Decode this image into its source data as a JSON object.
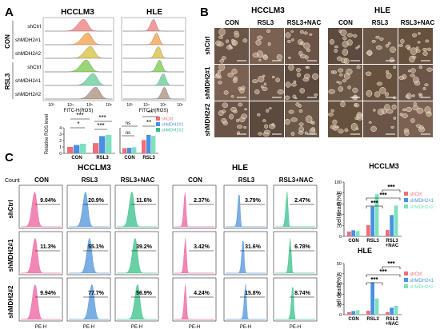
{
  "panels": {
    "a": "A",
    "b": "B",
    "c": "C"
  },
  "colors": {
    "shCtrl": "#f06e78",
    "shMDH2_1": "#4a90e2",
    "shMDH2_2": "#7ee0c0",
    "pink": "#ec5f9c",
    "blue": "#4f93d8",
    "green": "#36c088",
    "flow_red": "#f28a8a",
    "flow_orange": "#f5a95c",
    "flow_yellow": "#dbc84f",
    "flow_green": "#86cf5e",
    "flow_teal": "#76d1a3",
    "flow_brown": "#b49a8a"
  },
  "panelA": {
    "cells": [
      "HCCLM3",
      "HLE"
    ],
    "groups": [
      "CON",
      "RSL3"
    ],
    "row_labels": [
      "shCtrl",
      "shMDH2#1",
      "shMDH2#2",
      "shCtrl",
      "shMDH2#1",
      "shMDH2#2"
    ],
    "xaxis": "FITC-H(ROS)",
    "ticks": [
      "10³",
      "10⁴",
      "10⁵",
      "10⁶"
    ]
  },
  "panelA_bar": {
    "ylabel": "Relative ROS level",
    "yticks": [
      "0",
      "1",
      "2",
      "3",
      "4"
    ],
    "categories": [
      "CON",
      "RSL3"
    ],
    "legend": [
      "shCtrl",
      "shMDH2#1",
      "shMDH2#2"
    ],
    "sig_hcclm3": [
      "*",
      "***",
      "***",
      "***"
    ],
    "sig_hle": [
      "ns",
      "ns",
      "**",
      "**"
    ]
  },
  "panelB": {
    "cells": [
      "HCCLM3",
      "HLE"
    ],
    "conditions": [
      "CON",
      "RSL3",
      "RSL3+NAC"
    ],
    "rows": [
      "shCtrl",
      "shMDH2#1",
      "shMDH2#2"
    ]
  },
  "panelC": {
    "count_label": "Count",
    "cells": [
      "HCCLM3",
      "HLE"
    ],
    "conditions": [
      "CON",
      "RSL3",
      "RSL3+NAC"
    ],
    "rows": [
      "shCtrl",
      "shMDH2#1",
      "shMDH2#2"
    ],
    "xaxis": "PE-H",
    "hcclm3_pct": [
      [
        "9.04%",
        "20.9%",
        "11.6%"
      ],
      [
        "11.3%",
        "55.1%",
        "39.2%"
      ],
      [
        "9.94%",
        "77.7%",
        "56.9%"
      ]
    ],
    "hle_pct": [
      [
        "2.37%",
        "3.79%",
        "2.47%"
      ],
      [
        "3.42%",
        "31.6%",
        "6.78%"
      ],
      [
        "4.24%",
        "15.8%",
        "8.74%"
      ]
    ]
  },
  "chart_data": [
    {
      "type": "bar",
      "title": "",
      "ylabel": "Relative ROS level",
      "categories": [
        "CON",
        "RSL3"
      ],
      "series": [
        {
          "name": "shCtrl",
          "values": [
            1.0,
            1.6
          ]
        },
        {
          "name": "shMDH2#1",
          "values": [
            1.3,
            2.7
          ]
        },
        {
          "name": "shMDH2#2",
          "values": [
            1.5,
            2.9
          ]
        }
      ],
      "ylim": [
        0,
        4
      ]
    },
    {
      "type": "bar",
      "title": "",
      "categories": [
        "CON",
        "RSL3"
      ],
      "series": [
        {
          "name": "shCtrl",
          "values": [
            1.0,
            2.6
          ]
        },
        {
          "name": "shMDH2#1",
          "values": [
            1.1,
            3.6
          ]
        },
        {
          "name": "shMDH2#2",
          "values": [
            1.2,
            3.4
          ]
        }
      ],
      "ylim": [
        0,
        5
      ]
    },
    {
      "type": "bar",
      "title": "HCCLM3",
      "ylabel": "cell death(%)",
      "categories": [
        "CON",
        "RSL3",
        "RSL3 +NAC"
      ],
      "series": [
        {
          "name": "shCtrl",
          "values": [
            9,
            20.9,
            11.6
          ]
        },
        {
          "name": "shMDH2#1",
          "values": [
            11.3,
            55.1,
            39.2
          ]
        },
        {
          "name": "shMDH2#2",
          "values": [
            9.9,
            77.7,
            56.9
          ]
        }
      ],
      "yticks": [
        "0",
        "20",
        "40",
        "60",
        "80",
        "100"
      ],
      "ylim": [
        0,
        100
      ],
      "sig": [
        "***",
        "***",
        "***"
      ]
    },
    {
      "type": "bar",
      "title": "HLE",
      "ylabel": "cell death(%)",
      "categories": [
        "CON",
        "RSL3",
        "RSL3 +NAC"
      ],
      "series": [
        {
          "name": "shCtrl",
          "values": [
            2.4,
            3.8,
            2.5
          ]
        },
        {
          "name": "shMDH2#1",
          "values": [
            3.4,
            31.6,
            6.8
          ]
        },
        {
          "name": "shMDH2#2",
          "values": [
            4.2,
            15.8,
            8.7
          ]
        }
      ],
      "yticks": [
        "0",
        "10",
        "20",
        "30",
        "40",
        "50"
      ],
      "ylim": [
        0,
        50
      ],
      "sig": [
        "***",
        "***",
        "***"
      ]
    }
  ]
}
